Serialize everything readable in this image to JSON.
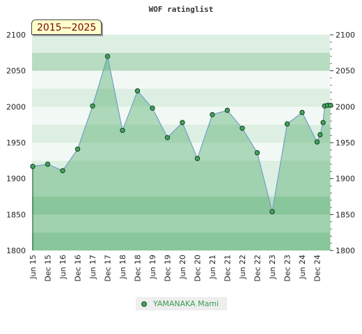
{
  "chart_data": {
    "type": "area",
    "title": "WOF ratinglist",
    "range_label": "2015—2025",
    "ylim": [
      1800,
      2100
    ],
    "y_ticks": [
      1800,
      1850,
      1900,
      1950,
      2000,
      2050,
      2100
    ],
    "x_tick_labels": [
      "Jun 15",
      "Dec 15",
      "Jun 16",
      "Dec 16",
      "Jun 17",
      "Dec 17",
      "Jun 18",
      "Dec 18",
      "Jun 19",
      "Dec 19",
      "Jun 20",
      "Dec 20",
      "Jun 21",
      "Dec 21",
      "Jun 22",
      "Dec 22",
      "Jun 23",
      "Dec 23",
      "Jun 24",
      "Dec 24"
    ],
    "series": [
      {
        "name": "YAMANAKA Mami",
        "color": "#3fa45c",
        "points": [
          {
            "t": 0.0,
            "v": 1917
          },
          {
            "t": 1.0,
            "v": 1920
          },
          {
            "t": 2.0,
            "v": 1911
          },
          {
            "t": 3.0,
            "v": 1941
          },
          {
            "t": 4.0,
            "v": 2001
          },
          {
            "t": 5.0,
            "v": 2070
          },
          {
            "t": 6.0,
            "v": 1967
          },
          {
            "t": 7.0,
            "v": 2022
          },
          {
            "t": 8.0,
            "v": 1998
          },
          {
            "t": 9.0,
            "v": 1957
          },
          {
            "t": 10.0,
            "v": 1978
          },
          {
            "t": 11.0,
            "v": 1928
          },
          {
            "t": 12.0,
            "v": 1989
          },
          {
            "t": 13.0,
            "v": 1995
          },
          {
            "t": 14.0,
            "v": 1970
          },
          {
            "t": 15.0,
            "v": 1936
          },
          {
            "t": 16.0,
            "v": 1854
          },
          {
            "t": 17.0,
            "v": 1976
          },
          {
            "t": 18.0,
            "v": 1992
          },
          {
            "t": 19.0,
            "v": 1951
          },
          {
            "t": 19.2,
            "v": 1961
          },
          {
            "t": 19.4,
            "v": 1978
          },
          {
            "t": 19.5,
            "v": 2001
          },
          {
            "t": 19.7,
            "v": 2002
          },
          {
            "t": 19.9,
            "v": 2002
          }
        ]
      }
    ],
    "colors": {
      "area_fill": "#3fa45c",
      "line": "#6fa0c8",
      "band_dark": "#b7dcc2",
      "band_light": "#dcefe2",
      "band_pale": "#f2f9f4"
    }
  }
}
